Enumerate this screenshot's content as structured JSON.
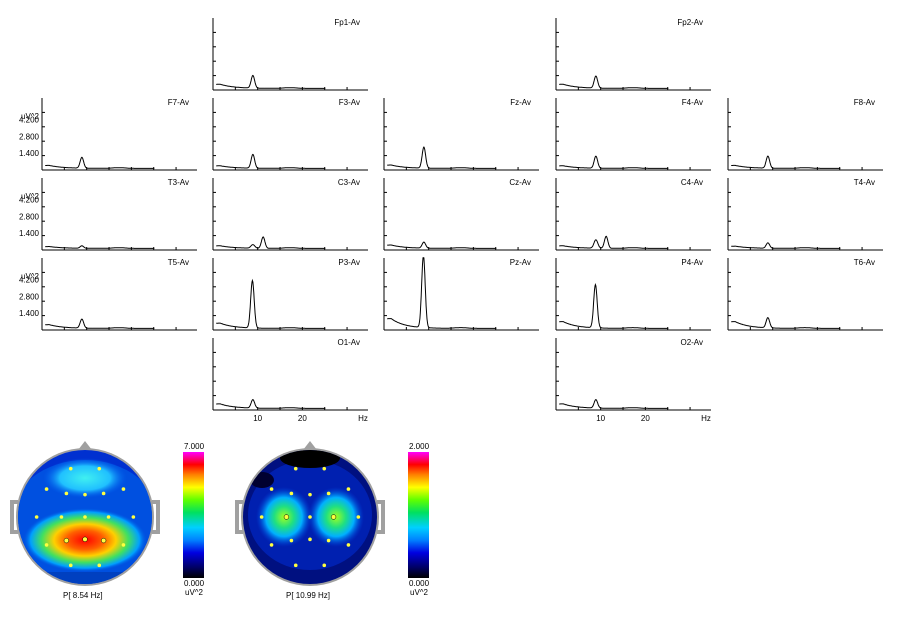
{
  "chart_data": {
    "type": "line",
    "x_unit_label": "Hz",
    "x_ticks": [
      10,
      20
    ],
    "x_range": [
      0,
      30
    ],
    "y_unit_label": "uV^2",
    "y_ticks": [
      "4.200",
      "2.800",
      "1.400"
    ],
    "y_tick_values": [
      4.2,
      2.8,
      1.4
    ],
    "y_range": [
      0,
      6.0
    ],
    "channels": [
      {
        "name": "Fp1-Av",
        "peak_hz": 8.7,
        "peak": 1.05,
        "peak2_hz": null,
        "peak2": 0,
        "base": 0.55
      },
      {
        "name": "Fp2-Av",
        "peak_hz": 8.7,
        "peak": 1.0,
        "peak2_hz": null,
        "peak2": 0,
        "base": 0.55
      },
      {
        "name": "F7-Av",
        "peak_hz": 8.7,
        "peak": 0.9,
        "peak2_hz": null,
        "peak2": 0,
        "base": 0.4
      },
      {
        "name": "F3-Av",
        "peak_hz": 8.7,
        "peak": 1.15,
        "peak2_hz": null,
        "peak2": 0,
        "base": 0.35
      },
      {
        "name": "Fz-Av",
        "peak_hz": 8.7,
        "peak": 1.75,
        "peak2_hz": null,
        "peak2": 0,
        "base": 0.45
      },
      {
        "name": "F4-Av",
        "peak_hz": 8.7,
        "peak": 1.0,
        "peak2_hz": null,
        "peak2": 0,
        "base": 0.35
      },
      {
        "name": "F8-Av",
        "peak_hz": 8.7,
        "peak": 1.0,
        "peak2_hz": null,
        "peak2": 0,
        "base": 0.4
      },
      {
        "name": "T3-Av",
        "peak_hz": 8.7,
        "peak": 0.2,
        "peak2_hz": null,
        "peak2": 0,
        "base": 0.25
      },
      {
        "name": "C3-Av",
        "peak_hz": 11.0,
        "peak": 0.95,
        "peak2_hz": 8.7,
        "peak2": 0.3,
        "base": 0.35
      },
      {
        "name": "Cz-Av",
        "peak_hz": 8.7,
        "peak": 0.5,
        "peak2_hz": null,
        "peak2": 0,
        "base": 0.45
      },
      {
        "name": "C4-Av",
        "peak_hz": 11.0,
        "peak": 1.0,
        "peak2_hz": 8.7,
        "peak2": 0.7,
        "base": 0.35
      },
      {
        "name": "T4-Av",
        "peak_hz": 8.7,
        "peak": 0.45,
        "peak2_hz": null,
        "peak2": 0,
        "base": 0.3
      },
      {
        "name": "T5-Av",
        "peak_hz": 8.7,
        "peak": 0.75,
        "peak2_hz": null,
        "peak2": 0,
        "base": 0.5
      },
      {
        "name": "P3-Av",
        "peak_hz": 8.6,
        "peak": 3.95,
        "peak2_hz": null,
        "peak2": 0,
        "base": 0.7
      },
      {
        "name": "Pz-Av",
        "peak_hz": 8.6,
        "peak": 6.0,
        "peak2_hz": null,
        "peak2": 0,
        "base": 1.3
      },
      {
        "name": "P4-Av",
        "peak_hz": 8.6,
        "peak": 3.6,
        "peak2_hz": null,
        "peak2": 0,
        "base": 0.9
      },
      {
        "name": "T6-Av",
        "peak_hz": 8.7,
        "peak": 0.85,
        "peak2_hz": null,
        "peak2": 0,
        "base": 0.9
      },
      {
        "name": "O1-Av",
        "peak_hz": 8.7,
        "peak": 0.7,
        "peak2_hz": null,
        "peak2": 0,
        "base": 0.6
      },
      {
        "name": "O2-Av",
        "peak_hz": 8.7,
        "peak": 0.7,
        "peak2_hz": null,
        "peak2": 0,
        "base": 0.6
      }
    ],
    "maps": [
      {
        "caption": "P[  8.54 Hz]",
        "scale_max": "7.000",
        "scale_min": "0.000",
        "unit": "uV^2",
        "max_location": "parietal (Pz)",
        "secondary": "frontal (Fz)"
      },
      {
        "caption": "P[ 10.99 Hz]",
        "scale_max": "2.000",
        "scale_min": "0.000",
        "unit": "uV^2",
        "max_location": "central (C3, C4)",
        "secondary": ""
      }
    ]
  }
}
